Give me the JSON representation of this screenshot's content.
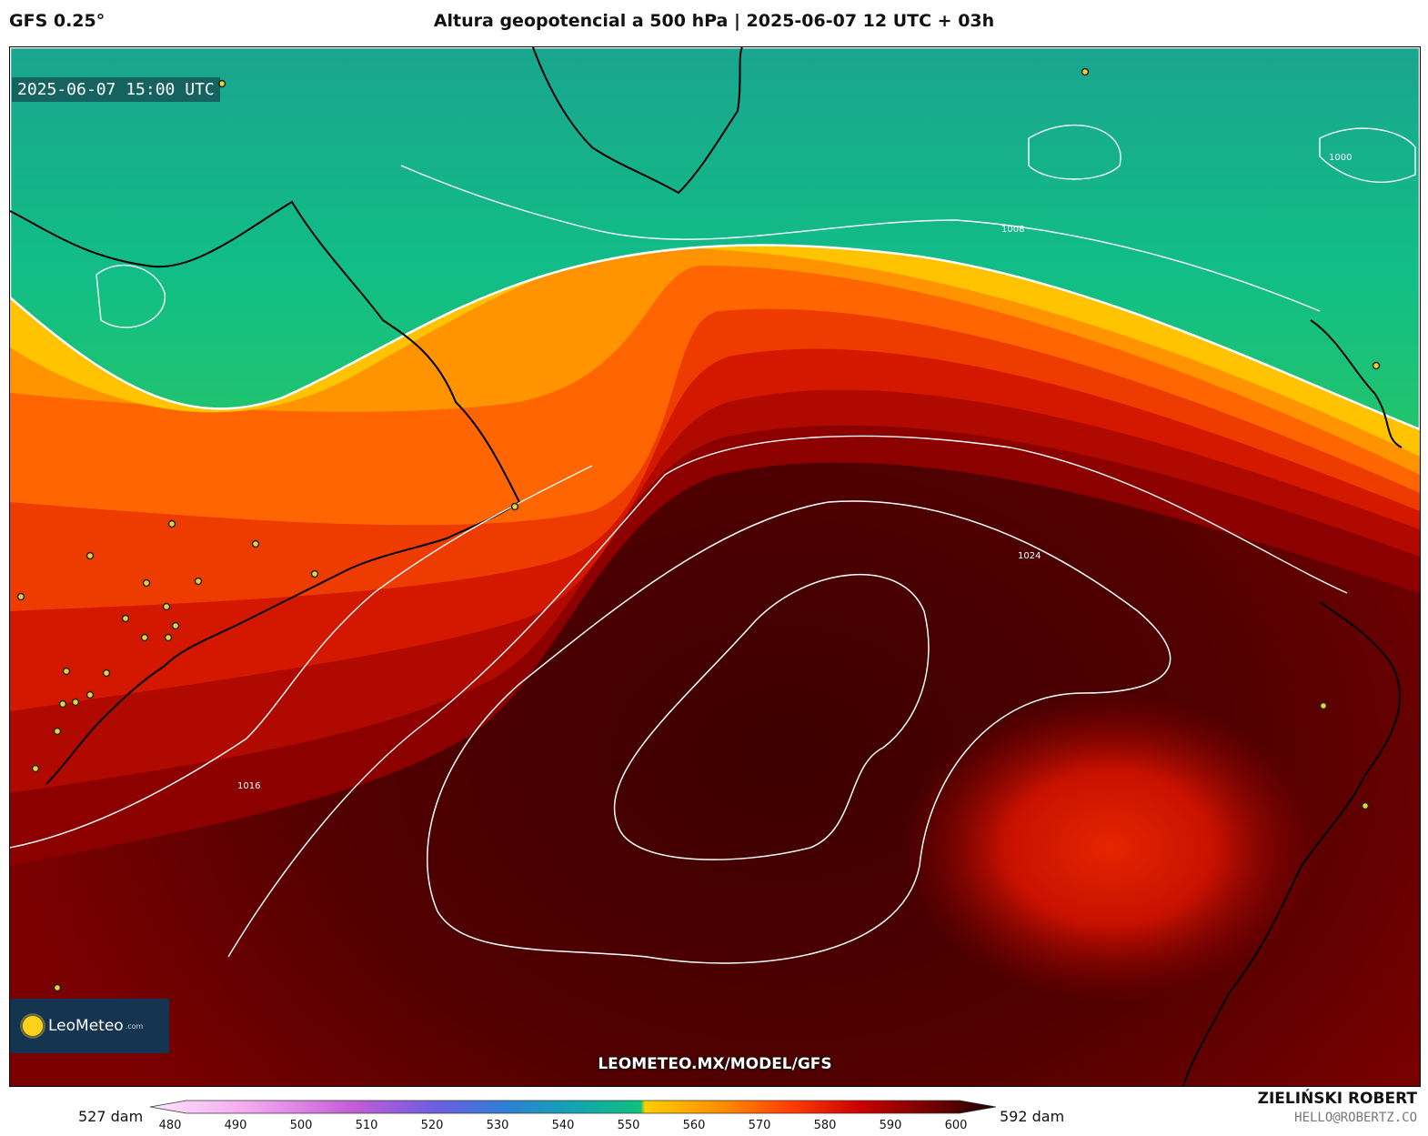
{
  "header": {
    "model": "GFS 0.25°",
    "title": "Altura geopotencial a 500 hPa | 2025-06-07 12 UTC + 03h"
  },
  "map": {
    "valid_time": "2025-06-07 15:00 UTC",
    "url": "LEOMETEO.MX/MODEL/GFS",
    "logo": {
      "name": "LeoMeteo",
      "suffix": ".com"
    },
    "isobar_labels": [
      "1000",
      "1008",
      "1016",
      "1024"
    ],
    "colors": {
      "low": "#12b98b",
      "mid": "#ff9a00",
      "high": "#4a0000"
    }
  },
  "colorbar": {
    "min_label": "527 dam",
    "max_label": "592 dam",
    "ticks": [
      "480",
      "490",
      "500",
      "510",
      "520",
      "530",
      "540",
      "550",
      "560",
      "570",
      "580",
      "590",
      "600"
    ]
  },
  "credit": {
    "author": "ZIELIŃSKI ROBERT",
    "email": "HELLO@ROBERTZ.CO"
  }
}
